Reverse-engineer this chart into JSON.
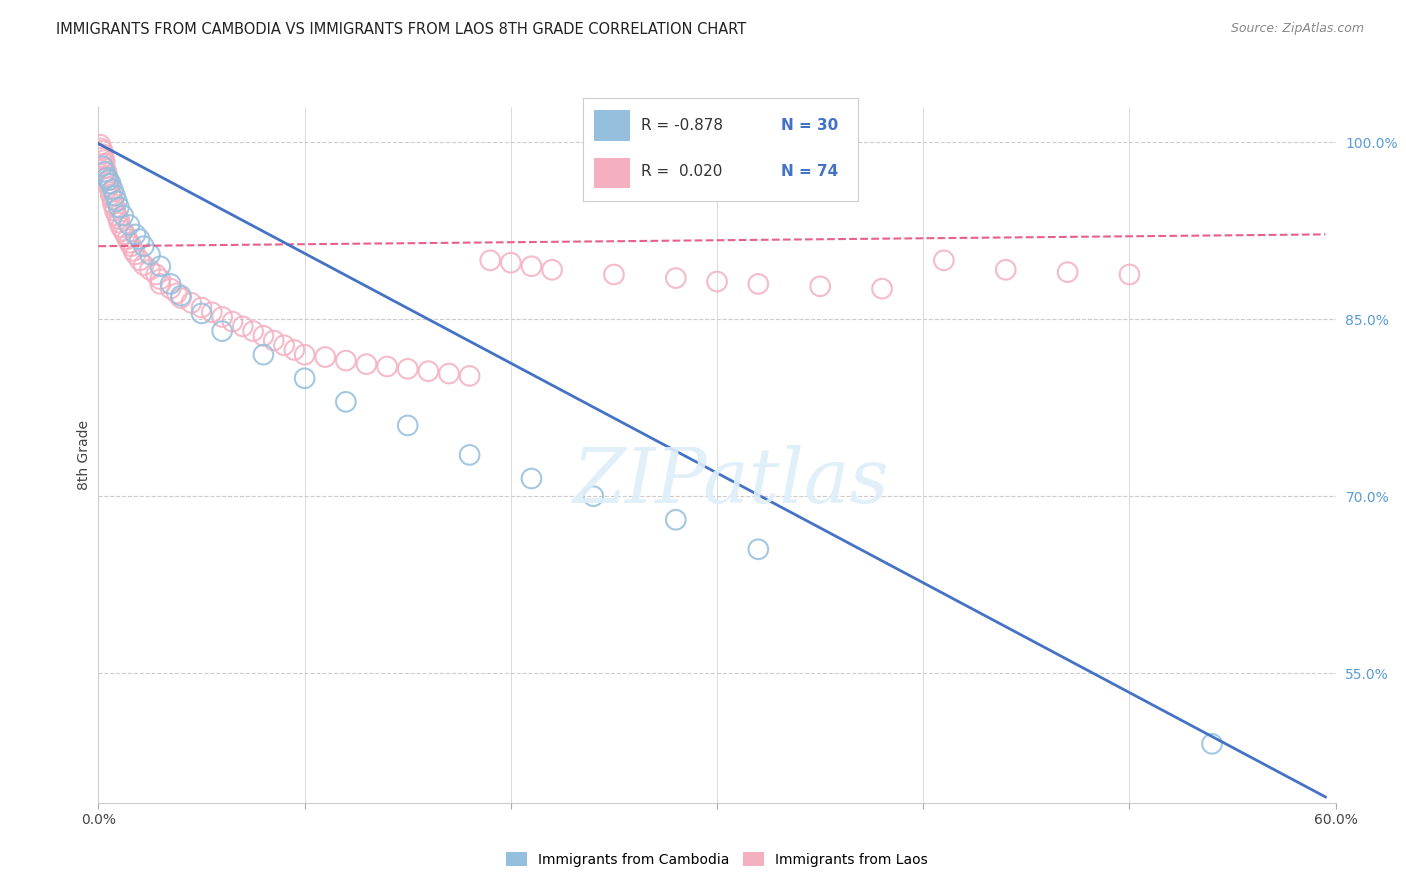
{
  "title": "IMMIGRANTS FROM CAMBODIA VS IMMIGRANTS FROM LAOS 8TH GRADE CORRELATION CHART",
  "source": "Source: ZipAtlas.com",
  "ylabel": "8th Grade",
  "legend_blue_label": "Immigrants from Cambodia",
  "legend_pink_label": "Immigrants from Laos",
  "xlim": [
    0.0,
    0.6
  ],
  "ylim": [
    0.44,
    1.03
  ],
  "xticks": [
    0.0,
    0.1,
    0.2,
    0.3,
    0.4,
    0.5,
    0.6
  ],
  "xticklabels": [
    "0.0%",
    "",
    "",
    "",
    "",
    "",
    "60.0%"
  ],
  "yticks_right": [
    1.0,
    0.85,
    0.7,
    0.55
  ],
  "ytick_right_labels": [
    "100.0%",
    "85.0%",
    "70.0%",
    "55.0%"
  ],
  "background": "#ffffff",
  "grid_color": "#cccccc",
  "blue_color": "#94bfdd",
  "pink_color": "#f4afc0",
  "blue_line_color": "#4472c4",
  "pink_line_color": "#e8608a",
  "blue_scatter": [
    [
      0.002,
      0.98
    ],
    [
      0.003,
      0.975
    ],
    [
      0.004,
      0.97
    ],
    [
      0.005,
      0.968
    ],
    [
      0.006,
      0.965
    ],
    [
      0.007,
      0.96
    ],
    [
      0.008,
      0.955
    ],
    [
      0.009,
      0.95
    ],
    [
      0.01,
      0.945
    ],
    [
      0.012,
      0.938
    ],
    [
      0.015,
      0.93
    ],
    [
      0.018,
      0.922
    ],
    [
      0.02,
      0.918
    ],
    [
      0.022,
      0.912
    ],
    [
      0.025,
      0.905
    ],
    [
      0.03,
      0.895
    ],
    [
      0.035,
      0.88
    ],
    [
      0.04,
      0.87
    ],
    [
      0.05,
      0.855
    ],
    [
      0.06,
      0.84
    ],
    [
      0.08,
      0.82
    ],
    [
      0.1,
      0.8
    ],
    [
      0.12,
      0.78
    ],
    [
      0.15,
      0.76
    ],
    [
      0.18,
      0.735
    ],
    [
      0.21,
      0.715
    ],
    [
      0.24,
      0.7
    ],
    [
      0.28,
      0.68
    ],
    [
      0.32,
      0.655
    ],
    [
      0.54,
      0.49
    ]
  ],
  "pink_scatter": [
    [
      0.001,
      0.998
    ],
    [
      0.001,
      0.995
    ],
    [
      0.002,
      0.993
    ],
    [
      0.002,
      0.99
    ],
    [
      0.002,
      0.987
    ],
    [
      0.003,
      0.985
    ],
    [
      0.003,
      0.982
    ],
    [
      0.003,
      0.978
    ],
    [
      0.004,
      0.975
    ],
    [
      0.004,
      0.972
    ],
    [
      0.004,
      0.97
    ],
    [
      0.005,
      0.968
    ],
    [
      0.005,
      0.965
    ],
    [
      0.005,
      0.962
    ],
    [
      0.006,
      0.958
    ],
    [
      0.006,
      0.955
    ],
    [
      0.007,
      0.952
    ],
    [
      0.007,
      0.948
    ],
    [
      0.008,
      0.945
    ],
    [
      0.008,
      0.942
    ],
    [
      0.009,
      0.938
    ],
    [
      0.01,
      0.935
    ],
    [
      0.01,
      0.932
    ],
    [
      0.011,
      0.928
    ],
    [
      0.012,
      0.925
    ],
    [
      0.013,
      0.922
    ],
    [
      0.014,
      0.918
    ],
    [
      0.015,
      0.915
    ],
    [
      0.016,
      0.912
    ],
    [
      0.017,
      0.908
    ],
    [
      0.018,
      0.905
    ],
    [
      0.02,
      0.9
    ],
    [
      0.022,
      0.896
    ],
    [
      0.025,
      0.892
    ],
    [
      0.028,
      0.888
    ],
    [
      0.03,
      0.884
    ],
    [
      0.03,
      0.88
    ],
    [
      0.035,
      0.876
    ],
    [
      0.038,
      0.872
    ],
    [
      0.04,
      0.868
    ],
    [
      0.045,
      0.864
    ],
    [
      0.05,
      0.86
    ],
    [
      0.055,
      0.856
    ],
    [
      0.06,
      0.852
    ],
    [
      0.065,
      0.848
    ],
    [
      0.07,
      0.844
    ],
    [
      0.075,
      0.84
    ],
    [
      0.08,
      0.836
    ],
    [
      0.085,
      0.832
    ],
    [
      0.09,
      0.828
    ],
    [
      0.095,
      0.824
    ],
    [
      0.1,
      0.82
    ],
    [
      0.11,
      0.818
    ],
    [
      0.12,
      0.815
    ],
    [
      0.13,
      0.812
    ],
    [
      0.14,
      0.81
    ],
    [
      0.15,
      0.808
    ],
    [
      0.16,
      0.806
    ],
    [
      0.17,
      0.804
    ],
    [
      0.18,
      0.802
    ],
    [
      0.19,
      0.9
    ],
    [
      0.2,
      0.898
    ],
    [
      0.21,
      0.895
    ],
    [
      0.22,
      0.892
    ],
    [
      0.25,
      0.888
    ],
    [
      0.28,
      0.885
    ],
    [
      0.3,
      0.882
    ],
    [
      0.32,
      0.88
    ],
    [
      0.35,
      0.878
    ],
    [
      0.38,
      0.876
    ],
    [
      0.41,
      0.9
    ],
    [
      0.44,
      0.892
    ],
    [
      0.47,
      0.89
    ],
    [
      0.5,
      0.888
    ]
  ],
  "blue_line": [
    [
      0.0,
      0.999
    ],
    [
      0.595,
      0.445
    ]
  ],
  "pink_line": [
    [
      0.0,
      0.912
    ],
    [
      0.595,
      0.922
    ]
  ]
}
